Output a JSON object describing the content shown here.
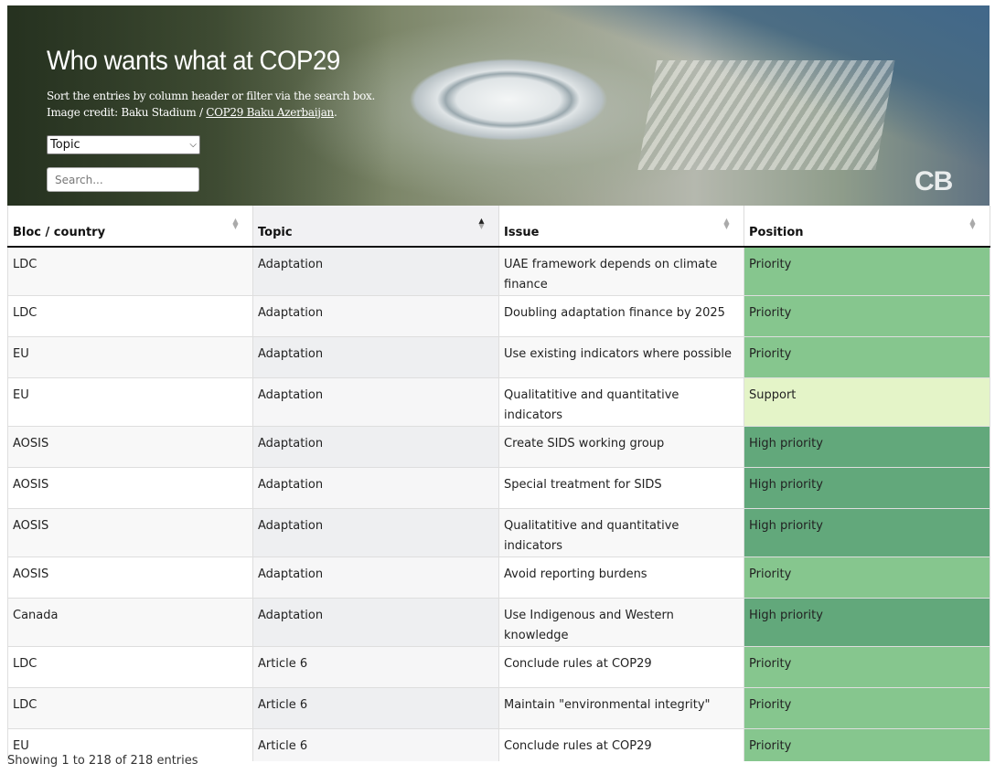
{
  "header": {
    "title": "Who wants what at COP29",
    "subtitle": "Sort the entries by column header or filter via the search box.",
    "credit_prefix": "Image credit: Baku Stadium / ",
    "credit_link": "COP29 Baku Azerbaijan",
    "credit_suffix": ".",
    "filter_value": "Topic",
    "search_placeholder": "Search...",
    "logo_text": "CB"
  },
  "table": {
    "columns": [
      "Bloc / country",
      "Topic",
      "Issue",
      "Position"
    ],
    "sorted_column": "Topic",
    "position_colors": {
      "Priority": "#86c68e",
      "Support": "#e4f4c8",
      "High priority": "#62a87b"
    },
    "rows": [
      {
        "bloc": "LDC",
        "topic": "Adaptation",
        "issue": "UAE framework depends on climate finance",
        "position": "Priority"
      },
      {
        "bloc": "LDC",
        "topic": "Adaptation",
        "issue": "Doubling adaptation finance by 2025",
        "position": "Priority"
      },
      {
        "bloc": "EU",
        "topic": "Adaptation",
        "issue": "Use existing indicators where possible",
        "position": "Priority"
      },
      {
        "bloc": "EU",
        "topic": "Adaptation",
        "issue": "Qualitatitive and quantitative indicators",
        "position": "Support"
      },
      {
        "bloc": "AOSIS",
        "topic": "Adaptation",
        "issue": "Create SIDS working group",
        "position": "High priority"
      },
      {
        "bloc": "AOSIS",
        "topic": "Adaptation",
        "issue": "Special treatment for SIDS",
        "position": "High priority"
      },
      {
        "bloc": "AOSIS",
        "topic": "Adaptation",
        "issue": "Qualitatitive and quantitative indicators",
        "position": "High priority"
      },
      {
        "bloc": "AOSIS",
        "topic": "Adaptation",
        "issue": "Avoid reporting burdens",
        "position": "Priority"
      },
      {
        "bloc": "Canada",
        "topic": "Adaptation",
        "issue": "Use Indigenous and Western knowledge",
        "position": "High priority"
      },
      {
        "bloc": "LDC",
        "topic": "Article 6",
        "issue": "Conclude rules at COP29",
        "position": "Priority"
      },
      {
        "bloc": "LDC",
        "topic": "Article 6",
        "issue": "Maintain \"environmental integrity\"",
        "position": "Priority"
      },
      {
        "bloc": "EU",
        "topic": "Article 6",
        "issue": "Conclude rules at COP29",
        "position": "Priority"
      }
    ]
  },
  "footer": {
    "info": "Showing 1 to 218 of 218 entries"
  }
}
